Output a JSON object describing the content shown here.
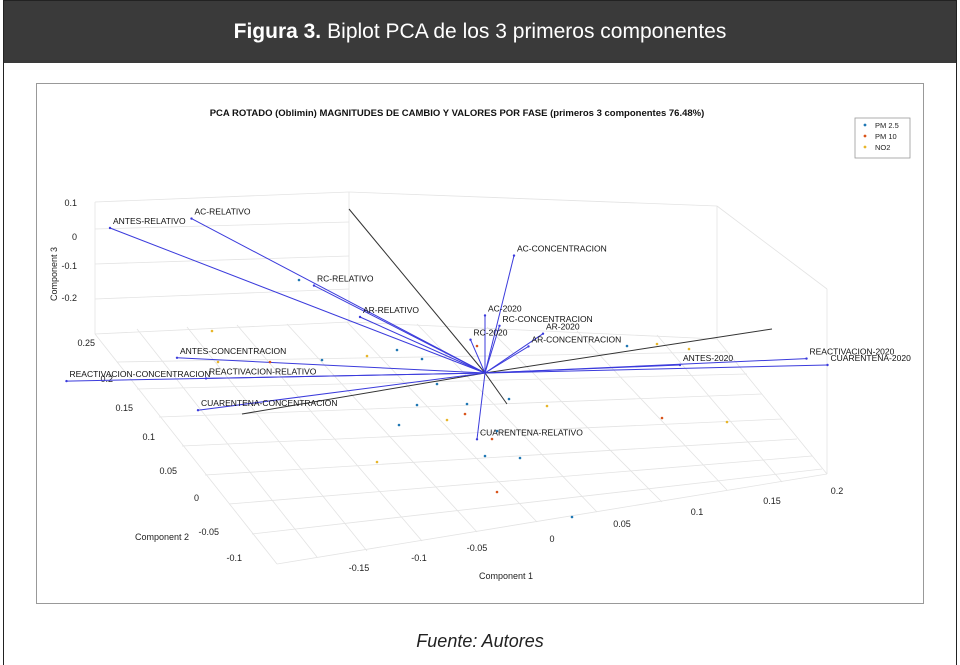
{
  "figure": {
    "label": "Figura 3.",
    "caption": "Biplot PCA de los 3 primeros componentes",
    "source": "Fuente: Autores"
  },
  "colors": {
    "header_bg": "#3a3a3a",
    "vector": "#3b3bdc",
    "axis_dark": "#333333",
    "pm25": "#1f77b4",
    "pm10": "#d9541a",
    "no2": "#e8b62a"
  },
  "chart_data": {
    "type": "scatter",
    "projection": "3d",
    "title": "PCA ROTADO (Oblimin) MAGNITUDES DE CAMBIO Y VALORES POR FASE (primeros 3 componentes 76.48%)",
    "xlabel": "Component 1",
    "ylabel": "Component 2",
    "zlabel": "Component 3",
    "xlim": [
      -0.15,
      0.2
    ],
    "ylim": [
      -0.1,
      0.25
    ],
    "zlim": [
      -0.2,
      0.1
    ],
    "xticks": [
      "-0.15",
      "-0.1",
      "-0.05",
      "0",
      "0.05",
      "0.1",
      "0.15",
      "0.2"
    ],
    "yticks": [
      "-0.1",
      "-0.05",
      "0",
      "0.05",
      "0.1",
      "0.15",
      "0.2",
      "0.25"
    ],
    "zticks": [
      "-0.2",
      "-0.1",
      "0",
      "0.1"
    ],
    "grid": true,
    "legend": {
      "position": "top-right",
      "entries": [
        {
          "name": "PM 2.5",
          "color": "#1f77b4"
        },
        {
          "name": "PM 10",
          "color": "#d9541a"
        },
        {
          "name": "NO2",
          "color": "#e8b62a"
        }
      ]
    },
    "loadings": [
      {
        "name": "AC-RELATIVO",
        "x": -0.13,
        "y": 0.1,
        "z": 0.12
      },
      {
        "name": "ANTES-RELATIVO",
        "x": -0.15,
        "y": 0.15,
        "z": 0.1
      },
      {
        "name": "RC-RELATIVO",
        "x": -0.06,
        "y": 0.08,
        "z": 0.06
      },
      {
        "name": "AR-RELATIVO",
        "x": -0.05,
        "y": 0.05,
        "z": 0.04
      },
      {
        "name": "AC-CONCENTRACION",
        "x": 0.02,
        "y": 0.0,
        "z": 0.1
      },
      {
        "name": "AC-2020",
        "x": 0.0,
        "y": 0.0,
        "z": 0.05
      },
      {
        "name": "RC-CONCENTRACION",
        "x": 0.01,
        "y": 0.0,
        "z": 0.04
      },
      {
        "name": "RC-2020",
        "x": -0.01,
        "y": 0.0,
        "z": 0.03
      },
      {
        "name": "AR-2020",
        "x": 0.04,
        "y": 0.0,
        "z": 0.03
      },
      {
        "name": "AR-CONCENTRACION",
        "x": 0.03,
        "y": 0.0,
        "z": 0.02
      },
      {
        "name": "ANTES-2020",
        "x": 0.12,
        "y": -0.02,
        "z": 0.0
      },
      {
        "name": "ANTES-CONCENTRACION",
        "x": -0.14,
        "y": 0.1,
        "z": 0.0
      },
      {
        "name": "REACTIVACION-RELATIVO",
        "x": -0.12,
        "y": 0.1,
        "z": -0.02
      },
      {
        "name": "REACTIVACION-2020",
        "x": 0.2,
        "y": -0.03,
        "z": 0.0
      },
      {
        "name": "CUARENTENA-2020",
        "x": 0.2,
        "y": -0.05,
        "z": 0.0
      },
      {
        "name": "REACTIVACION-CONCENTRACION",
        "x": -0.18,
        "y": 0.15,
        "z": -0.03
      },
      {
        "name": "CUARENTENA-CONCENTRACION",
        "x": -0.14,
        "y": 0.08,
        "z": -0.04
      },
      {
        "name": "CUARENTENA-RELATIVO",
        "x": -0.02,
        "y": -0.02,
        "z": -0.05
      }
    ]
  }
}
